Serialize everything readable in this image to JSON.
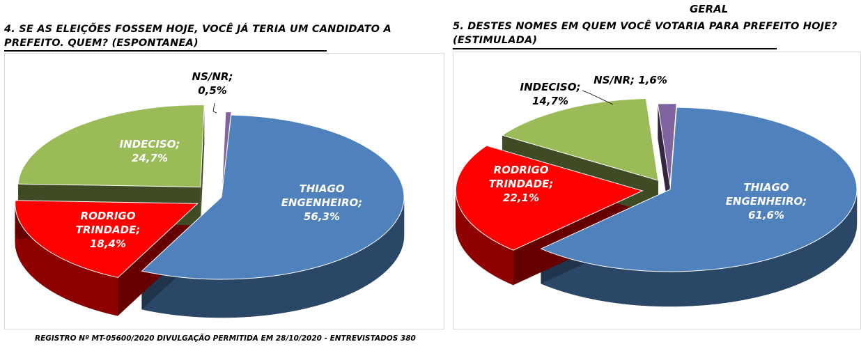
{
  "page_header": "GERAL",
  "footer": "REGISTRO Nº MT-05600/2020 DIVULGAÇÃO PERMITIDA EM 28/10/2020 - ENTREVISTADOS 380",
  "colors": {
    "thiago": "#4f81bd",
    "rodrigo": "#ff0000",
    "indeciso": "#9bbb59",
    "nsnr": "#8064a2"
  },
  "chart_data": [
    {
      "type": "pie",
      "title_lines": [
        "4. SE AS ELEIÇÕES FOSSEM HOJE, VOCÊ JÁ TERIA UM CANDIDATO A",
        "PREFEITO. QUEM? (ESPONTANEA)"
      ],
      "slices": [
        {
          "label_lines": [
            "THIAGO",
            "ENGENHEIRO;"
          ],
          "value": 56.3,
          "value_label": "56,3%",
          "color": "#4f81bd"
        },
        {
          "label_lines": [
            "RODRIGO",
            "TRINDADE;"
          ],
          "value": 18.4,
          "value_label": "18,4%",
          "color": "#ff0000"
        },
        {
          "label_lines": [
            "INDECISO;"
          ],
          "value": 24.7,
          "value_label": "24,7%",
          "color": "#9bbb59"
        },
        {
          "label_lines": [
            "NS/NR;"
          ],
          "value": 0.5,
          "value_label": "0,5%",
          "color": "#8064a2"
        }
      ]
    },
    {
      "type": "pie",
      "title_lines": [
        "5. DESTES NOMES EM QUEM VOCÊ VOTARIA PARA PREFEITO HOJE?",
        "(ESTIMULADA)"
      ],
      "slices": [
        {
          "label_lines": [
            "THIAGO",
            "ENGENHEIRO;"
          ],
          "value": 61.6,
          "value_label": "61,6%",
          "color": "#4f81bd"
        },
        {
          "label_lines": [
            "RODRIGO",
            "TRINDADE;"
          ],
          "value": 22.1,
          "value_label": "22,1%",
          "color": "#ff0000"
        },
        {
          "label_lines": [
            "INDECISO;"
          ],
          "value": 14.7,
          "value_label": "14,7%",
          "color": "#9bbb59"
        },
        {
          "label_lines": [
            "NS/NR;"
          ],
          "value": 1.6,
          "value_label": "1,6%",
          "color": "#8064a2"
        }
      ]
    }
  ]
}
